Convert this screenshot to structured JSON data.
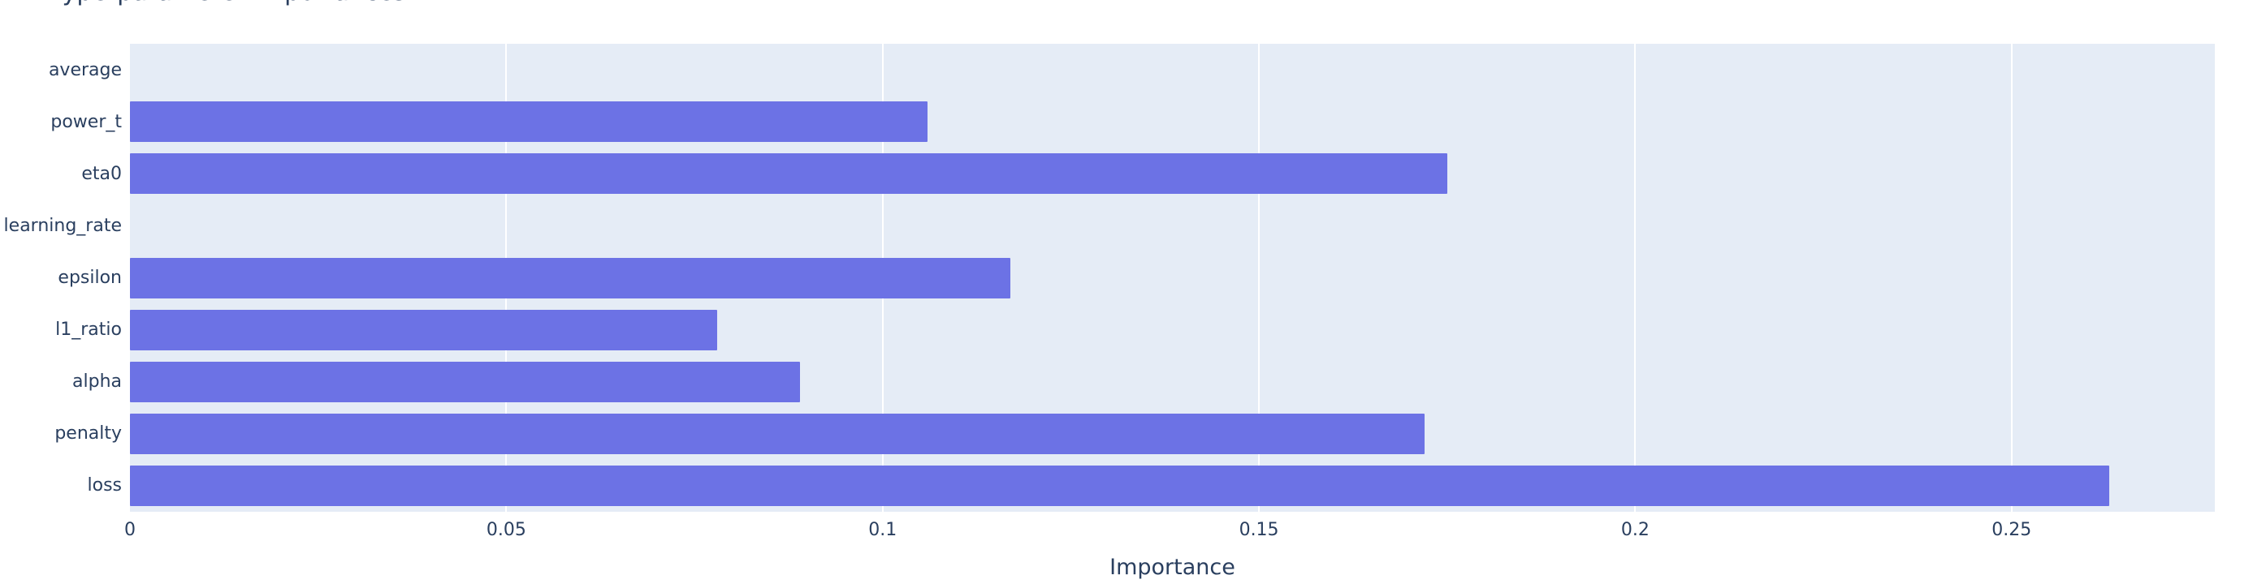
{
  "colors": {
    "bar": "#6c72e5",
    "plot_bg": "#e5ecf6",
    "text": "#2a3f5f",
    "gridline": "#ffffff"
  },
  "chart_data": {
    "type": "bar",
    "orientation": "horizontal",
    "title": "Hyperparameter Importances",
    "xlabel": "Importance",
    "ylabel": "",
    "categories": [
      "average",
      "power_t",
      "eta0",
      "learning_rate",
      "epsilon",
      "l1_ratio",
      "alpha",
      "penalty",
      "loss"
    ],
    "values": [
      0,
      0.106,
      0.175,
      0,
      0.117,
      0.078,
      0.089,
      0.172,
      0.263
    ],
    "xlim": [
      0,
      0.277
    ],
    "xtick_values": [
      0,
      0.05,
      0.1,
      0.15,
      0.2,
      0.25
    ],
    "xtick_labels": [
      "0",
      "0.05",
      "0.1",
      "0.15",
      "0.2",
      "0.25"
    ],
    "grid": "vertical-white-on-light-panel",
    "legend": "none"
  }
}
